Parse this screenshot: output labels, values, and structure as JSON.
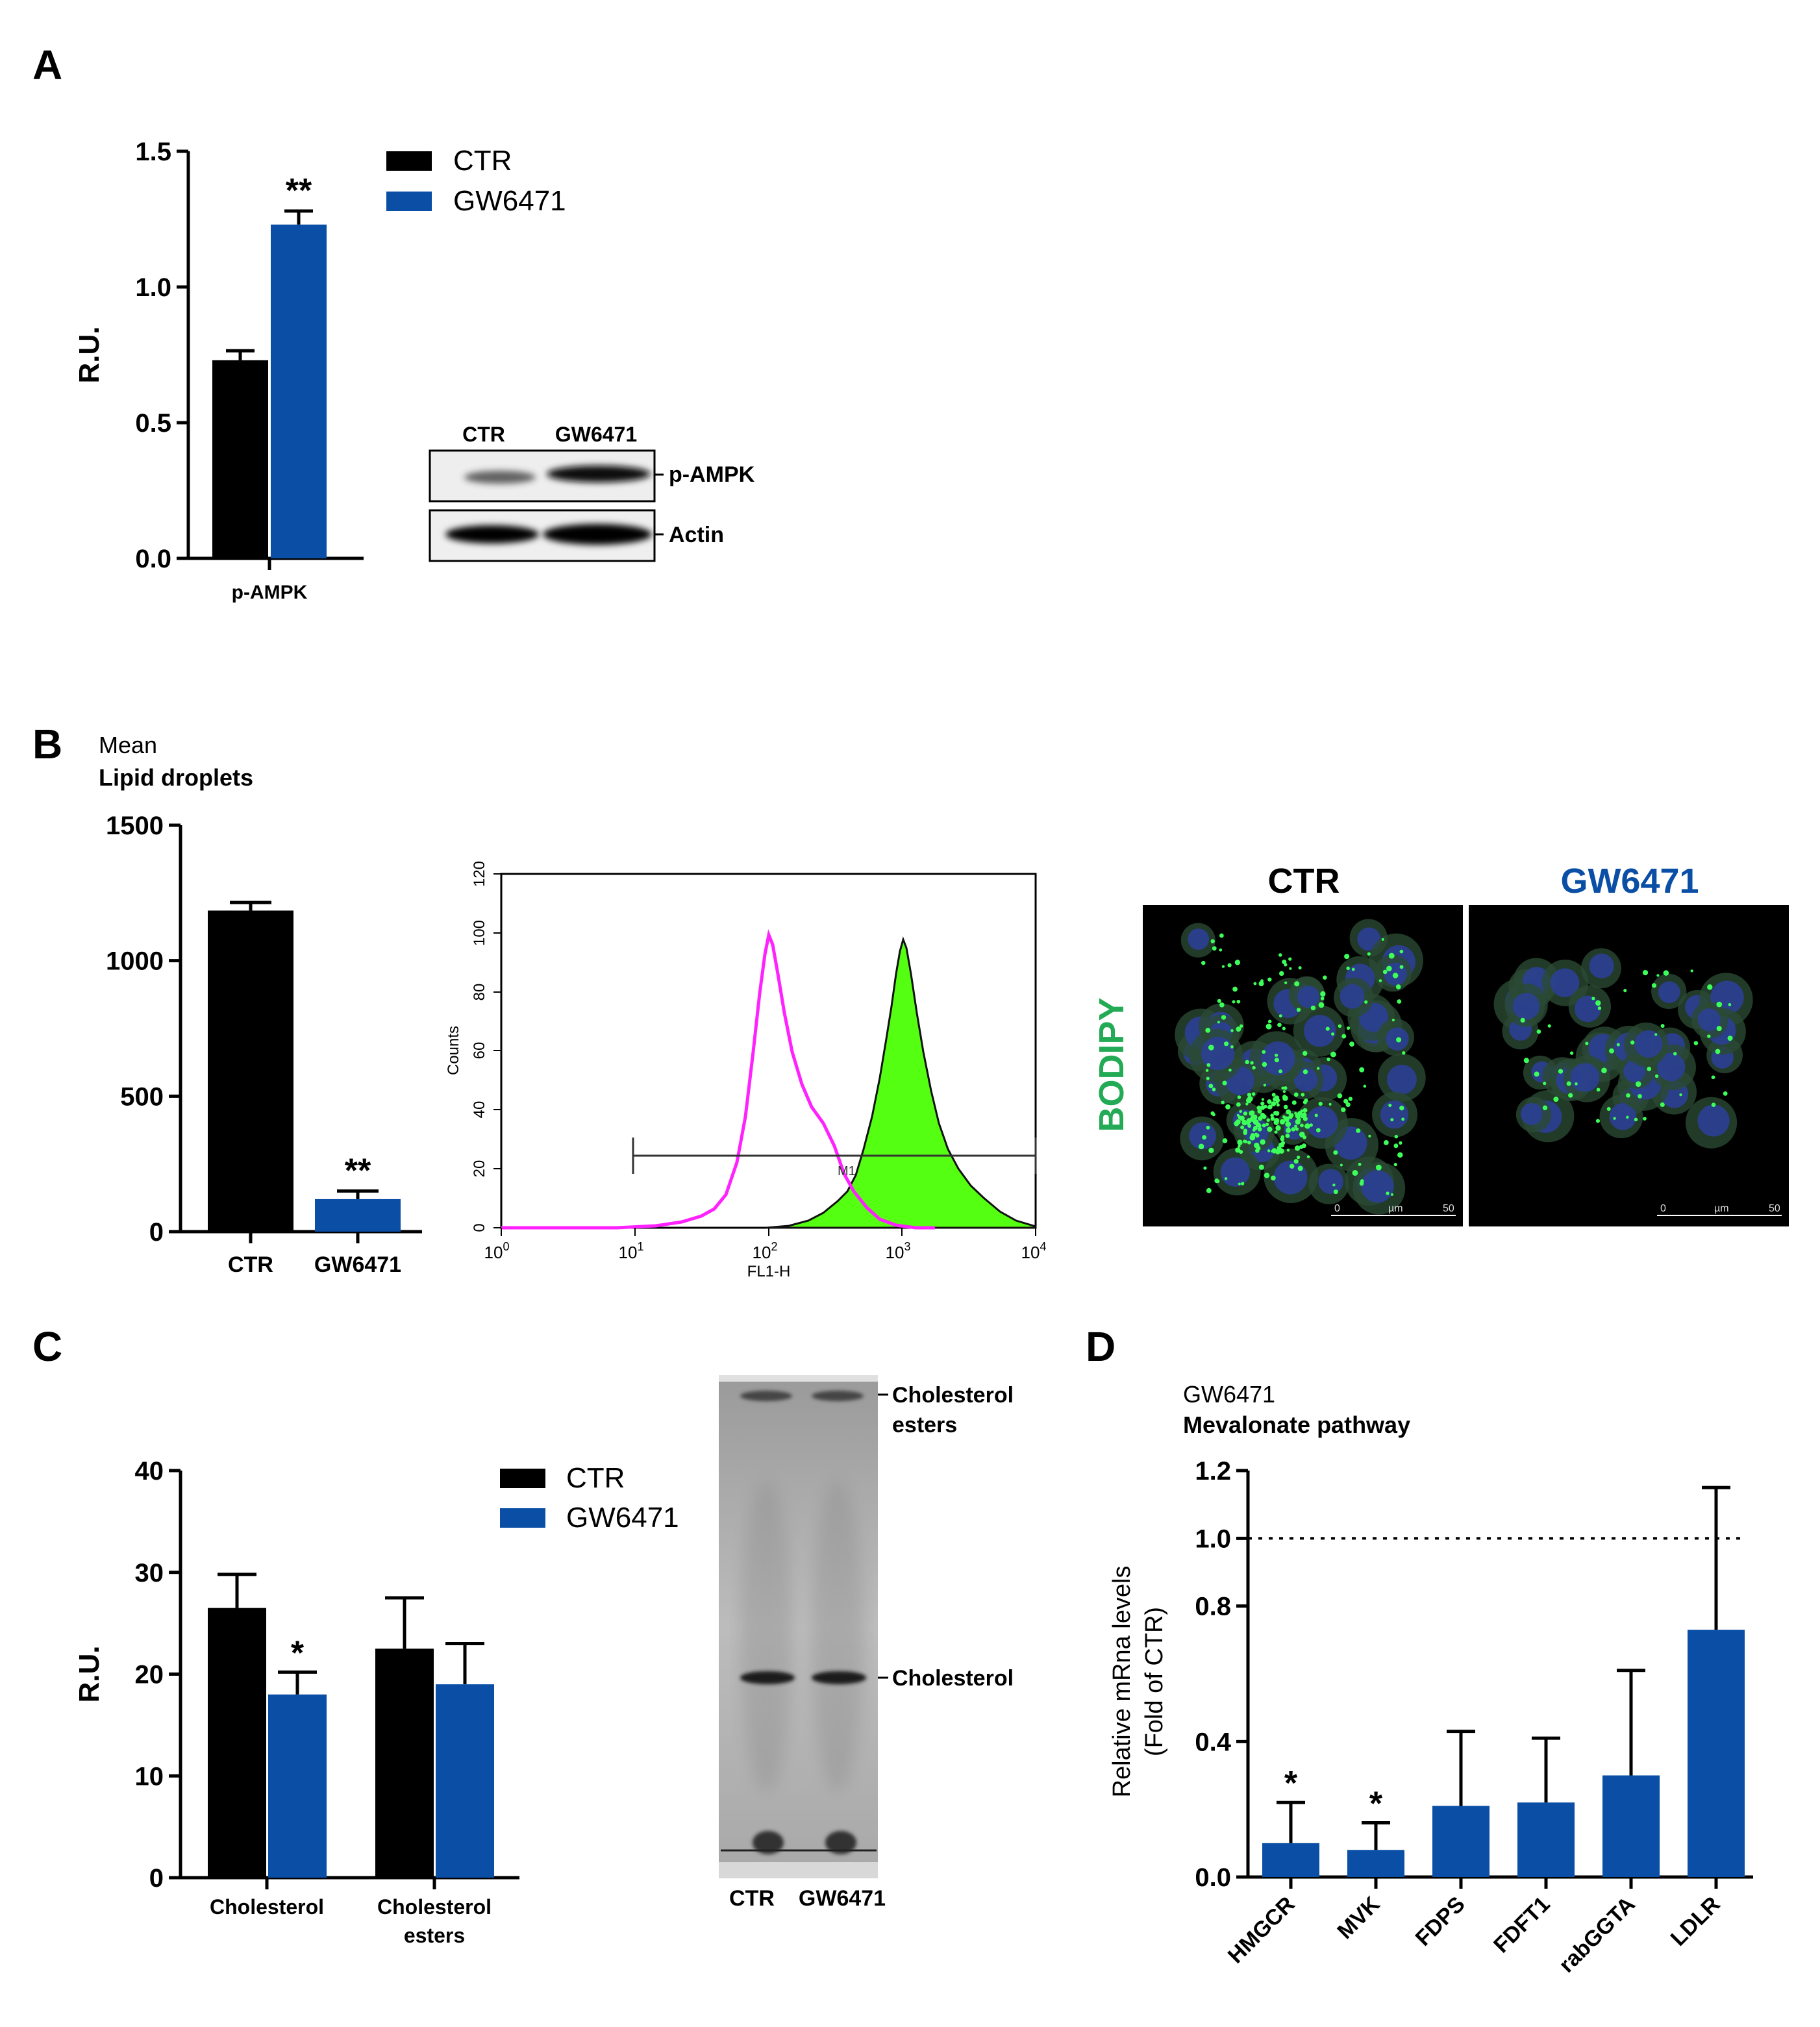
{
  "colors": {
    "ctr": "#000000",
    "gw": "#0a4ea6",
    "bodipy": "#22aa55",
    "histogram_ctr": "#ff22ff",
    "histogram_fill": "#55ff11",
    "title_blue": "#0a4ea6"
  },
  "panels": {
    "A": {
      "letter": "A",
      "western": {
        "lanes": [
          "CTR",
          "GW6471"
        ],
        "bands": [
          "p-AMPK",
          "Actin"
        ]
      }
    },
    "B": {
      "letter": "B",
      "flow": {
        "xlabel": "FL1-H",
        "ylabel": "Counts",
        "yticks": [
          "0",
          "20",
          "40",
          "60",
          "80",
          "100",
          "120"
        ],
        "xtick_base": "10",
        "xtick_exp": [
          "0",
          "1",
          "2",
          "3",
          "4"
        ],
        "gate_label": "M1"
      },
      "microscopy": {
        "stain": "BODIPY",
        "ctr_title": "CTR",
        "gw_title": "GW6471",
        "scale_left": "0",
        "scale_unit": "µm",
        "scale_right": "50"
      }
    },
    "C": {
      "letter": "C",
      "tlc": {
        "lanes": [
          "CTR",
          "GW6471"
        ],
        "bands": [
          "Cholesterol esters",
          "Cholesterol"
        ],
        "band_lines": [
          [
            "Cholesterol",
            "esters"
          ],
          [
            "Cholesterol"
          ]
        ]
      }
    },
    "D": {
      "letter": "D"
    }
  },
  "chart_data": [
    {
      "id": "A",
      "type": "bar",
      "title": "",
      "ylabel": "R.U.",
      "categories": [
        "p-AMPK"
      ],
      "ylim": [
        0,
        1.5
      ],
      "yticks": [
        "0.0",
        "0.5",
        "1.0",
        "1.5"
      ],
      "series": [
        {
          "name": "CTR",
          "values": [
            0.73
          ],
          "errors": [
            0.035
          ]
        },
        {
          "name": "GW6471",
          "values": [
            1.23
          ],
          "errors": [
            0.05
          ]
        }
      ],
      "annotations": [
        {
          "series": "GW6471",
          "category": "p-AMPK",
          "text": "**"
        }
      ],
      "legend": [
        "CTR",
        "GW6471"
      ]
    },
    {
      "id": "B",
      "type": "bar",
      "title": "Mean",
      "subtitle": "Lipid droplets",
      "ylabel": "",
      "categories": [
        "CTR",
        "GW6471"
      ],
      "ylim": [
        0,
        1500
      ],
      "yticks": [
        "0",
        "500",
        "1000",
        "1500"
      ],
      "values": [
        1185,
        120
      ],
      "errors": [
        30,
        30
      ],
      "annotations": [
        {
          "category": "GW6471",
          "text": "**"
        }
      ]
    },
    {
      "id": "C",
      "type": "bar",
      "title": "",
      "ylabel": "R.U.",
      "categories": [
        [
          "Cholesterol"
        ],
        [
          "Cholesterol",
          "esters"
        ]
      ],
      "ylim": [
        0,
        40
      ],
      "yticks": [
        "0",
        "10",
        "20",
        "30",
        "40"
      ],
      "series": [
        {
          "name": "CTR",
          "values": [
            26.5,
            22.5
          ],
          "errors": [
            3.3,
            5.0
          ]
        },
        {
          "name": "GW6471",
          "values": [
            18.0,
            19.0
          ],
          "errors": [
            2.2,
            4.0
          ]
        }
      ],
      "annotations": [
        {
          "series": "GW6471",
          "category": "Cholesterol",
          "text": "*"
        }
      ],
      "legend": [
        "CTR",
        "GW6471"
      ]
    },
    {
      "id": "D",
      "type": "bar",
      "title": "GW6471",
      "subtitle": "Mevalonate pathway",
      "ylabel": [
        "Relative mRna levels",
        "(Fold of CTR)"
      ],
      "categories": [
        "HMGCR",
        "MVK",
        "FDPS",
        "FDFT1",
        "rabGGTA",
        "LDLR"
      ],
      "ylim": [
        0,
        1.2
      ],
      "yticks": [
        "0.0",
        "0.4",
        "0.8",
        "1.0",
        "1.2"
      ],
      "yticks_values": [
        0,
        0.4,
        0.8,
        1.0,
        1.2
      ],
      "values": [
        0.1,
        0.08,
        0.21,
        0.22,
        0.3,
        0.73
      ],
      "errors": [
        0.12,
        0.08,
        0.22,
        0.19,
        0.31,
        0.42
      ],
      "reference_line": 1.0,
      "annotations": [
        {
          "category": "HMGCR",
          "text": "*"
        },
        {
          "category": "MVK",
          "text": "*"
        }
      ]
    }
  ]
}
